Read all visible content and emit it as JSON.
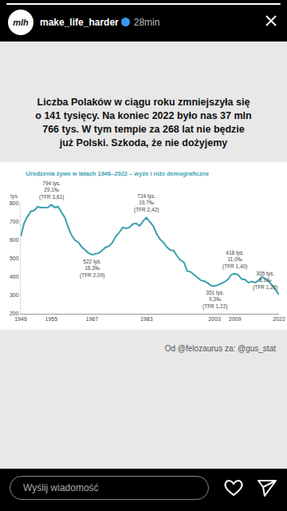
{
  "header": {
    "avatar": "mlh",
    "username": "make_life_harder",
    "time": "28min"
  },
  "post_text": [
    "Liczba Polaków w ciągu roku zmniejszyła się",
    "o 141 tysięcy. Na koniec 2022 było nas 37 mln",
    "766 tys. W tym tempie za 268 lat nie będzie",
    "już Polski. Szkoda, że nie dożyjemy"
  ],
  "credit": "Od @felozaurus za: @gus_stat",
  "reply_placeholder": "Wyślij wiadomość",
  "chart_data": {
    "type": "line",
    "title": "Urodzenia żywe w latach 1946–2022 – wyże i niże demograficzne",
    "y_label": "tys.",
    "color": "#3a9fb0",
    "x": [
      1946,
      1947,
      1948,
      1949,
      1950,
      1951,
      1952,
      1953,
      1954,
      1955,
      1956,
      1957,
      1958,
      1959,
      1960,
      1961,
      1962,
      1963,
      1964,
      1965,
      1966,
      1967,
      1968,
      1969,
      1970,
      1971,
      1972,
      1973,
      1974,
      1975,
      1976,
      1977,
      1978,
      1979,
      1980,
      1981,
      1982,
      1983,
      1984,
      1985,
      1986,
      1987,
      1988,
      1989,
      1990,
      1991,
      1992,
      1993,
      1994,
      1995,
      1996,
      1997,
      1998,
      1999,
      2000,
      2001,
      2002,
      2003,
      2004,
      2005,
      2006,
      2007,
      2008,
      2009,
      2010,
      2011,
      2012,
      2013,
      2014,
      2015,
      2016,
      2017,
      2018,
      2019,
      2020,
      2021,
      2022
    ],
    "values": [
      622,
      693,
      730,
      758,
      763,
      783,
      778,
      779,
      779,
      794,
      779,
      783,
      755,
      723,
      669,
      627,
      600,
      588,
      563,
      547,
      530,
      522,
      525,
      531,
      546,
      562,
      569,
      588,
      623,
      643,
      670,
      665,
      670,
      689,
      692,
      679,
      705,
      724,
      700,
      678,
      635,
      606,
      588,
      563,
      547,
      545,
      514,
      492,
      481,
      433,
      428,
      412,
      395,
      382,
      378,
      368,
      353,
      351,
      356,
      364,
      374,
      388,
      414,
      418,
      413,
      389,
      386,
      370,
      376,
      370,
      382,
      402,
      388,
      375,
      355,
      331,
      305
    ],
    "xlim": [
      1946,
      2022
    ],
    "xticks": [
      1946,
      1955,
      1967,
      1983,
      2003,
      2009,
      2022
    ],
    "ylim": [
      200,
      800
    ],
    "yticks": [
      200,
      300,
      400,
      500,
      600,
      700,
      800
    ],
    "grid": false,
    "annotations": [
      {
        "x": 1955,
        "text": [
          "794 tys.",
          "29,1‰",
          "(TFR 3,61)"
        ]
      },
      {
        "x": 1967,
        "text": [
          "522 tys.",
          "16,3‰",
          "(TFR 2,09)"
        ]
      },
      {
        "x": 1983,
        "text": [
          "724 tys.",
          "19,7‰",
          "(TFR 2,42)"
        ]
      },
      {
        "x": 2003,
        "text": [
          "351 tys.",
          "9,3‰",
          "(TFR 1,22)"
        ]
      },
      {
        "x": 2009,
        "text": [
          "418 tys.",
          "11,0‰",
          "(TFR 1,40)"
        ]
      },
      {
        "x": 2022,
        "text": [
          "305 tys.",
          "8,1‰",
          "(TFR 1,26)"
        ]
      }
    ]
  }
}
